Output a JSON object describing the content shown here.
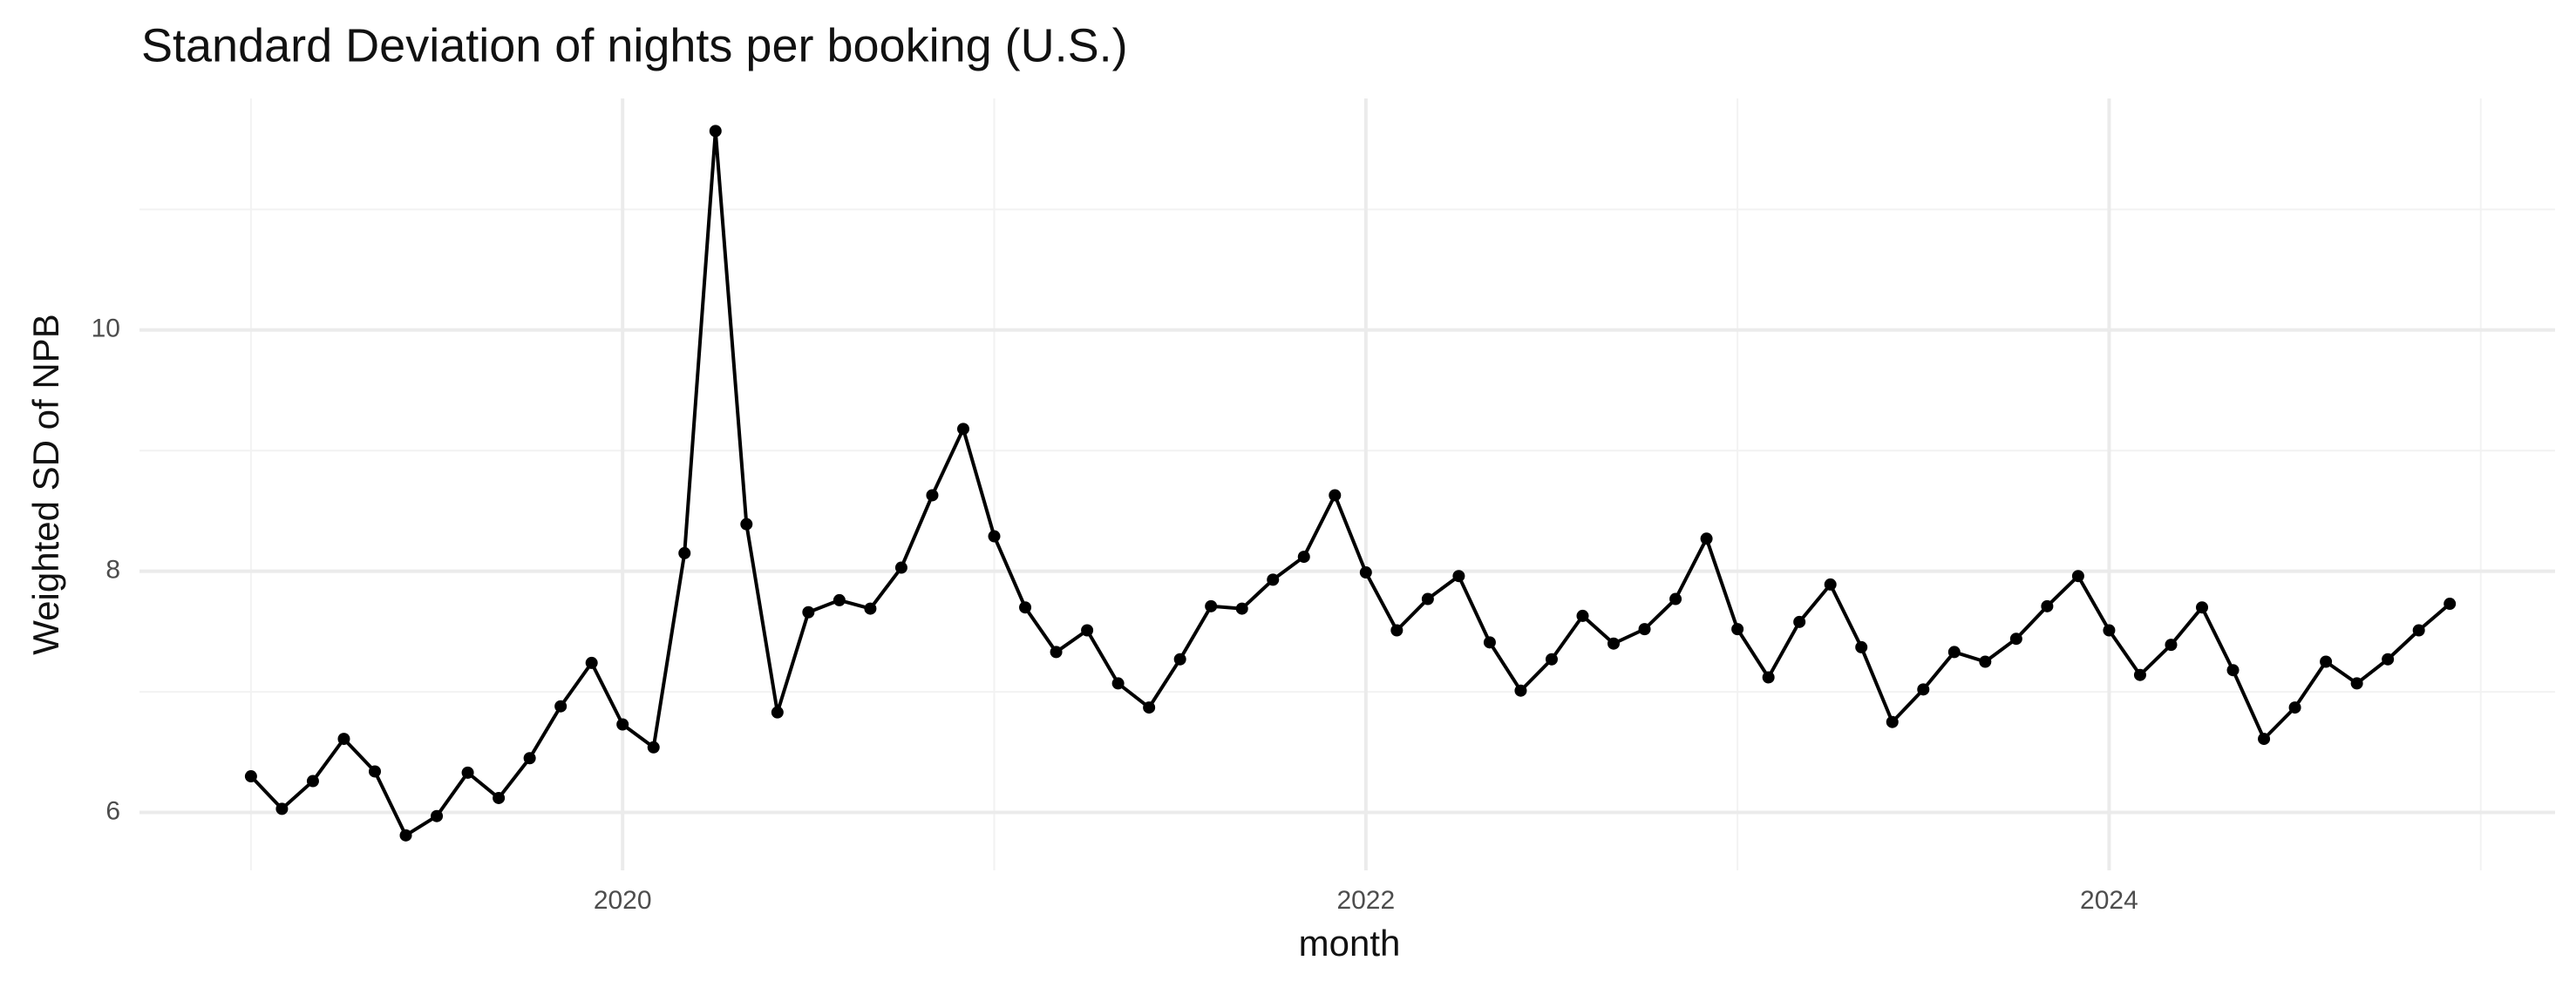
{
  "chart_data": {
    "type": "line",
    "title": "Standard Deviation of nights per booking (U.S.)",
    "x_label": "month",
    "y_label": "Weighted SD of NPB",
    "x": [
      "2019-01",
      "2019-02",
      "2019-03",
      "2019-04",
      "2019-05",
      "2019-06",
      "2019-07",
      "2019-08",
      "2019-09",
      "2019-10",
      "2019-11",
      "2019-12",
      "2020-01",
      "2020-02",
      "2020-03",
      "2020-04",
      "2020-05",
      "2020-06",
      "2020-07",
      "2020-08",
      "2020-09",
      "2020-10",
      "2020-11",
      "2020-12",
      "2021-01",
      "2021-02",
      "2021-03",
      "2021-04",
      "2021-05",
      "2021-06",
      "2021-07",
      "2021-08",
      "2021-09",
      "2021-10",
      "2021-11",
      "2021-12",
      "2022-01",
      "2022-02",
      "2022-03",
      "2022-04",
      "2022-05",
      "2022-06",
      "2022-07",
      "2022-08",
      "2022-09",
      "2022-10",
      "2022-11",
      "2022-12",
      "2023-01",
      "2023-02",
      "2023-03",
      "2023-04",
      "2023-05",
      "2023-06",
      "2023-07",
      "2023-08",
      "2023-09",
      "2023-10",
      "2023-11",
      "2023-12",
      "2024-01",
      "2024-02",
      "2024-03",
      "2024-04",
      "2024-05",
      "2024-06",
      "2024-07",
      "2024-08",
      "2024-09",
      "2024-10",
      "2024-11",
      "2024-12"
    ],
    "values": [
      6.3,
      6.03,
      6.26,
      6.61,
      6.34,
      5.81,
      5.97,
      6.33,
      6.12,
      6.45,
      6.88,
      7.24,
      6.73,
      6.54,
      8.15,
      11.65,
      8.39,
      6.83,
      7.66,
      7.76,
      7.69,
      8.03,
      8.63,
      9.18,
      8.29,
      7.7,
      7.33,
      7.51,
      7.07,
      6.87,
      7.27,
      7.71,
      7.69,
      7.93,
      8.12,
      8.63,
      7.99,
      7.51,
      7.77,
      7.96,
      7.41,
      7.01,
      7.27,
      7.63,
      7.4,
      7.52,
      7.77,
      8.27,
      7.52,
      7.12,
      7.58,
      7.89,
      7.37,
      6.75,
      7.02,
      7.33,
      7.25,
      7.44,
      7.71,
      7.96,
      7.51,
      7.14,
      7.39,
      7.7,
      7.18,
      6.61,
      6.87,
      7.25,
      7.07,
      7.27,
      7.51,
      7.73
    ],
    "color": "#000000",
    "xlim": [
      2018.7,
      2025.2
    ],
    "xticks": [
      2020,
      2022,
      2024
    ],
    "ylim": [
      5.52,
      11.92
    ],
    "yticks": [
      6,
      8,
      10
    ],
    "grid": true,
    "minor_grid": true
  }
}
